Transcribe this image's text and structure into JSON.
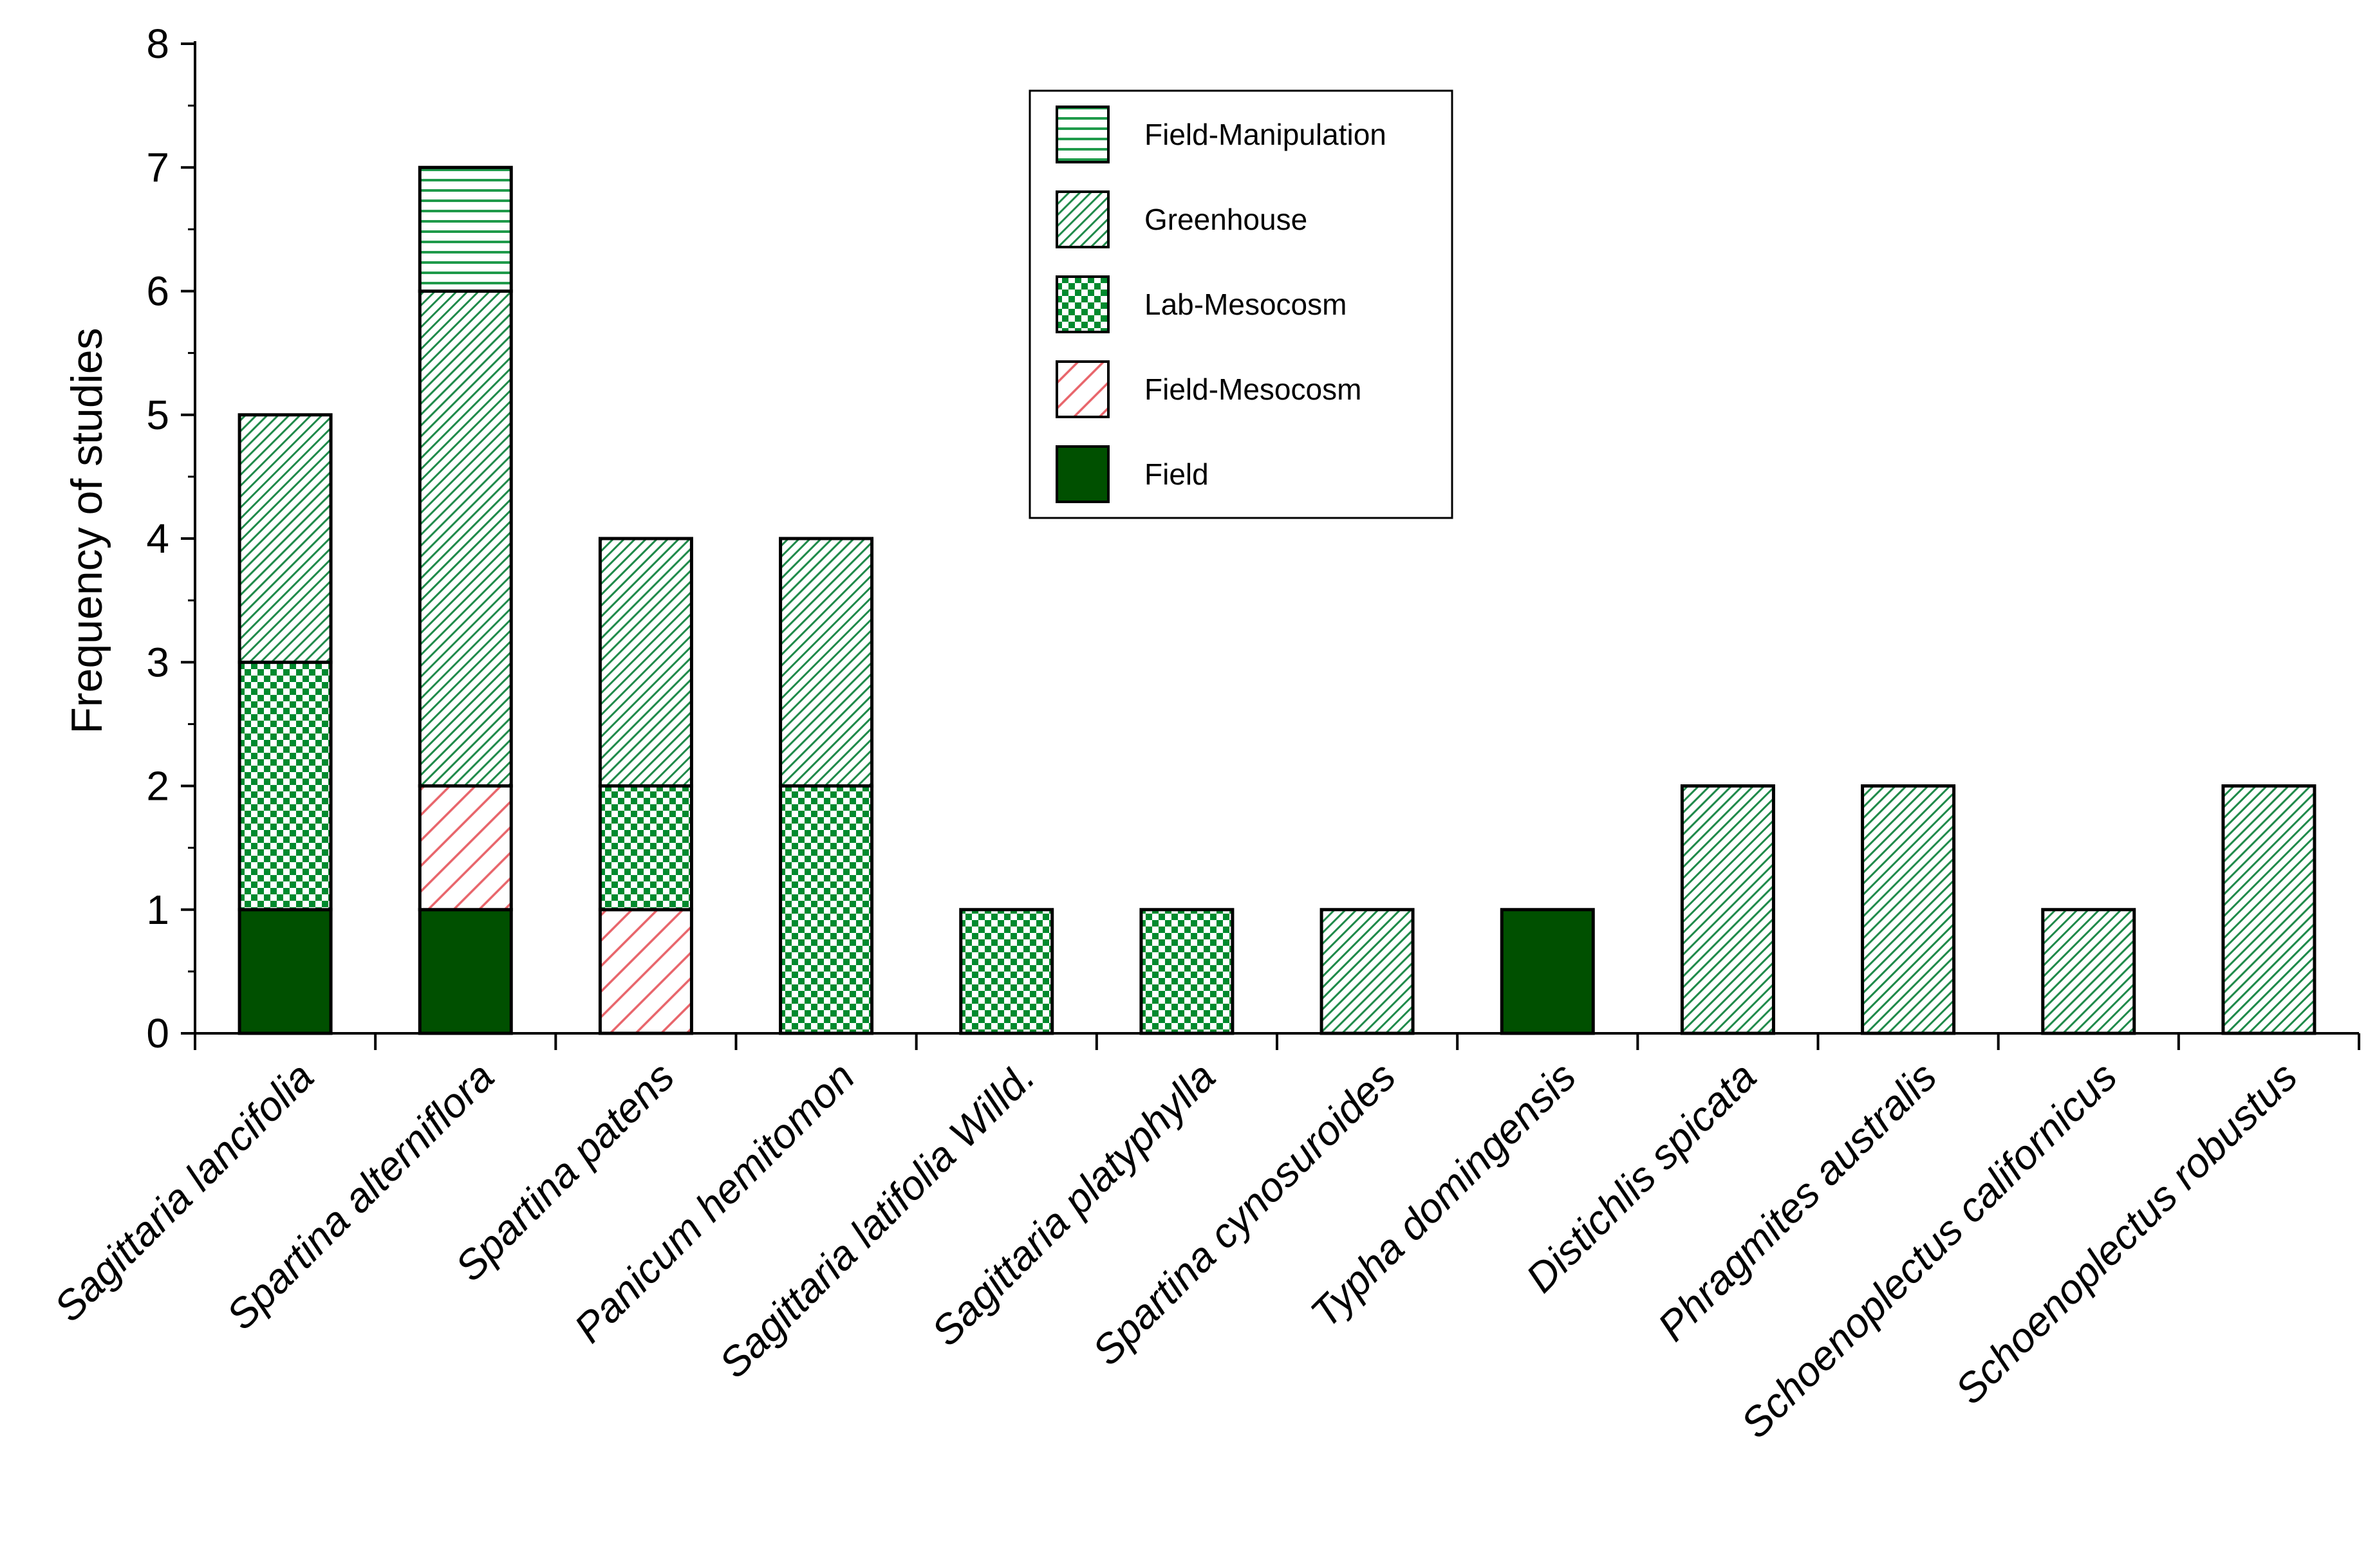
{
  "chart_data": {
    "type": "bar",
    "stacked": true,
    "title": "",
    "xlabel": "",
    "ylabel": "Frequency of studies",
    "ylim": [
      0,
      8
    ],
    "yticks": [
      0,
      1,
      2,
      3,
      4,
      5,
      6,
      7,
      8
    ],
    "grid": false,
    "legend_position": "top-center",
    "categories": [
      "Sagittaria lancifolia",
      "Spartina alterniflora",
      "Spartina patens",
      "Panicum hemitomon",
      "Sagittaria latifolia Willd.",
      "Sagittaria platyphylla",
      "Spartina cynosuroides",
      "Typha domingensis",
      "Distichlis spicata",
      "Phragmites australis",
      "Schoenoplectus californicus",
      "Schoenoplectus robustus"
    ],
    "series": [
      {
        "name": "Field",
        "pattern": "solid",
        "color": "#005000",
        "values": [
          1,
          1,
          0,
          0,
          0,
          0,
          0,
          1,
          0,
          0,
          0,
          0
        ]
      },
      {
        "name": "Field-Mesocosm",
        "pattern": "diagonal",
        "color": "#e8646a",
        "values": [
          0,
          1,
          1,
          0,
          0,
          0,
          0,
          0,
          0,
          0,
          0,
          0
        ]
      },
      {
        "name": "Lab-Mesocosm",
        "pattern": "checker",
        "color": "#008a2e",
        "values": [
          2,
          0,
          1,
          2,
          1,
          1,
          0,
          0,
          0,
          0,
          0,
          0
        ]
      },
      {
        "name": "Greenhouse",
        "pattern": "fine-diagonal",
        "color": "#1f8a4a",
        "values": [
          2,
          4,
          2,
          2,
          0,
          0,
          1,
          0,
          2,
          2,
          1,
          2
        ]
      },
      {
        "name": "Field-Manipulation",
        "pattern": "horizontal",
        "color": "#1f9a4a",
        "values": [
          0,
          1,
          0,
          0,
          0,
          0,
          0,
          0,
          0,
          0,
          0,
          0
        ]
      }
    ],
    "legend_order": [
      "Field-Manipulation",
      "Greenhouse",
      "Lab-Mesocosm",
      "Field-Mesocosm",
      "Field"
    ]
  }
}
